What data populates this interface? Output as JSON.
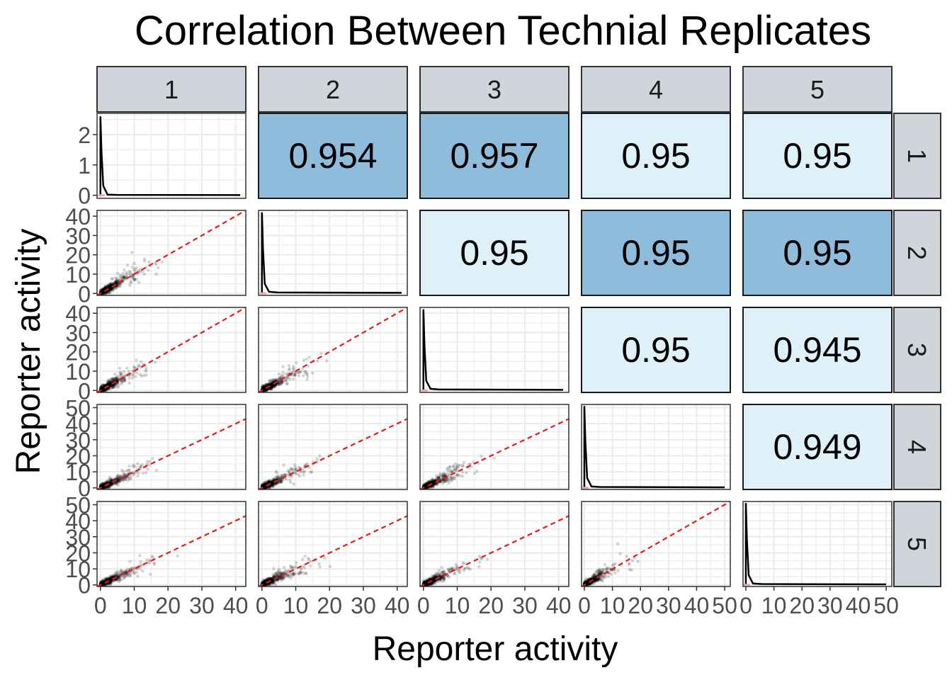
{
  "chart_data": {
    "type": "scatter-matrix",
    "title": "Correlation Between Technial Replicates",
    "xlabel": "Reporter activity",
    "ylabel": "Reporter activity",
    "replicates": [
      "1",
      "2",
      "3",
      "4",
      "5"
    ],
    "column_strip_labels": [
      "1",
      "2",
      "3",
      "4",
      "5"
    ],
    "row_strip_labels": [
      "1",
      "2",
      "3",
      "4",
      "5"
    ],
    "axis_ranges": [
      [
        -1,
        43
      ],
      [
        -1,
        43
      ],
      [
        -1,
        43
      ],
      [
        -1,
        52
      ],
      [
        -1,
        52
      ]
    ],
    "x_ticks": [
      {
        "values": [
          0,
          10,
          20,
          30,
          40
        ],
        "labels": [
          "0",
          "10",
          "20",
          "30",
          "40"
        ]
      },
      {
        "values": [
          0,
          10,
          20,
          30,
          40
        ],
        "labels": [
          "0",
          "10",
          "20",
          "30",
          "40"
        ]
      },
      {
        "values": [
          0,
          10,
          20,
          30,
          40
        ],
        "labels": [
          "0",
          "10",
          "20",
          "30",
          "40"
        ]
      },
      {
        "values": [
          0,
          10,
          20,
          30,
          40,
          50
        ],
        "labels": [
          "0",
          "10",
          "20",
          "30",
          "40",
          "50"
        ]
      },
      {
        "values": [
          0,
          10,
          20,
          30,
          40,
          50
        ],
        "labels": [
          "0",
          "10",
          "20",
          "30",
          "40",
          "50"
        ]
      }
    ],
    "y_ticks": [
      {
        "values": [
          0,
          1,
          2
        ],
        "labels": [
          "0",
          "1",
          "2"
        ],
        "range": [
          -0.1,
          2.7
        ]
      },
      {
        "values": [
          0,
          10,
          20,
          30,
          40
        ],
        "labels": [
          "0",
          "10",
          "20",
          "30",
          "40"
        ]
      },
      {
        "values": [
          0,
          10,
          20,
          30,
          40
        ],
        "labels": [
          "0",
          "10",
          "20",
          "30",
          "40"
        ]
      },
      {
        "values": [
          0,
          10,
          20,
          30,
          40,
          50
        ],
        "labels": [
          "0",
          "10",
          "20",
          "30",
          "40",
          "50"
        ]
      },
      {
        "values": [
          0,
          10,
          20,
          30,
          40,
          50
        ],
        "labels": [
          "0",
          "10",
          "20",
          "30",
          "40",
          "50"
        ]
      }
    ],
    "correlations": [
      {
        "row": 1,
        "col": 2,
        "label": "0.954",
        "highlight": true
      },
      {
        "row": 1,
        "col": 3,
        "label": "0.957",
        "highlight": true
      },
      {
        "row": 1,
        "col": 4,
        "label": "0.95",
        "highlight": false
      },
      {
        "row": 1,
        "col": 5,
        "label": "0.95",
        "highlight": false
      },
      {
        "row": 2,
        "col": 3,
        "label": "0.95",
        "highlight": false
      },
      {
        "row": 2,
        "col": 4,
        "label": "0.95",
        "highlight": true
      },
      {
        "row": 2,
        "col": 5,
        "label": "0.95",
        "highlight": true
      },
      {
        "row": 3,
        "col": 4,
        "label": "0.95",
        "highlight": false
      },
      {
        "row": 3,
        "col": 5,
        "label": "0.945",
        "highlight": false
      },
      {
        "row": 4,
        "col": 5,
        "label": "0.949",
        "highlight": false
      }
    ],
    "identity_line": {
      "slope": 1,
      "intercept": 0,
      "style": "dashed"
    },
    "colors": {
      "highlight_fill": "#8fbcdb",
      "normal_fill": "#dff1f8",
      "strip_fill": "#d0d4db",
      "identity_line": "#e41a1c",
      "points": "#000000",
      "density_line": "#000000",
      "grid": "#ebebeb"
    }
  }
}
